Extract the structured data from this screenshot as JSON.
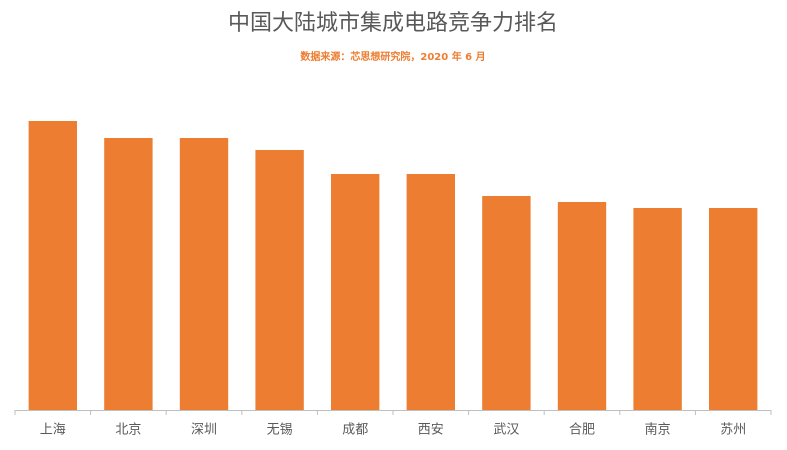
{
  "chart_data": {
    "type": "bar",
    "title": "中国大陆城市集成电路竞争力排名",
    "subtitle": "数据来源：芯思想研究院，2020 年 6 月",
    "categories": [
      "上海",
      "北京",
      "深圳",
      "无锡",
      "成都",
      "西安",
      "武汉",
      "合肥",
      "南京",
      "苏州"
    ],
    "values": [
      289,
      272,
      272,
      260,
      236,
      236,
      214,
      208,
      202,
      202
    ],
    "color": "#ED7D31",
    "ylim": [
      0,
      300
    ],
    "grid": false
  }
}
